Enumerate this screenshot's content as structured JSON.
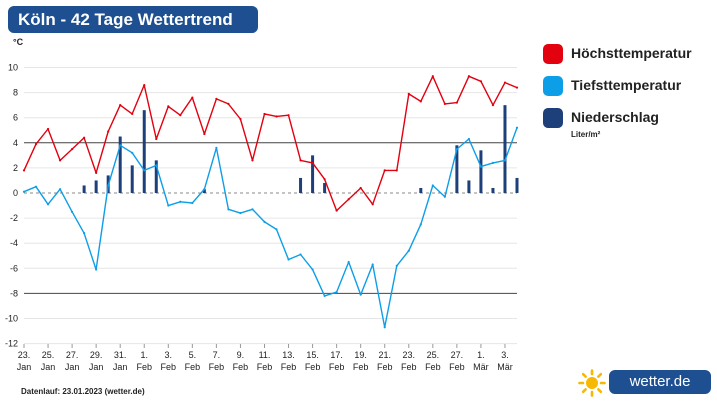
{
  "header": {
    "title": "Köln - 42 Tage Wettertrend",
    "unit": "°C"
  },
  "legend": {
    "items": [
      {
        "label": "Höchsttemperatur",
        "color": "#e3000f"
      },
      {
        "label": "Tiefsttemperatur",
        "color": "#0d9ee8"
      },
      {
        "label": "Niederschlag",
        "color": "#1d3f7a",
        "sublabel": "Liter/m²"
      }
    ]
  },
  "footer": {
    "text": "Datenlauf: 23.01.2023 (wetter.de)"
  },
  "brand": {
    "text": "wetter.de",
    "sun_color": "#f6b800",
    "box_color": "#1d4f91"
  },
  "chart_data": {
    "type": "line",
    "x": [
      "2023-01-23",
      "2023-01-24",
      "2023-01-25",
      "2023-01-26",
      "2023-01-27",
      "2023-01-28",
      "2023-01-29",
      "2023-01-30",
      "2023-01-31",
      "2023-02-01",
      "2023-02-02",
      "2023-02-03",
      "2023-02-04",
      "2023-02-05",
      "2023-02-06",
      "2023-02-07",
      "2023-02-08",
      "2023-02-09",
      "2023-02-10",
      "2023-02-11",
      "2023-02-12",
      "2023-02-13",
      "2023-02-14",
      "2023-02-15",
      "2023-02-16",
      "2023-02-17",
      "2023-02-18",
      "2023-02-19",
      "2023-02-20",
      "2023-02-21",
      "2023-02-22",
      "2023-02-23",
      "2023-02-24",
      "2023-02-25",
      "2023-02-26",
      "2023-02-27",
      "2023-02-28",
      "2023-03-01",
      "2023-03-02",
      "2023-03-03",
      "2023-03-04",
      "2023-03-05"
    ],
    "x_ticks": [
      {
        "day": "23.",
        "month": "Jan"
      },
      {
        "day": "25.",
        "month": "Jan"
      },
      {
        "day": "27.",
        "month": "Jan"
      },
      {
        "day": "29.",
        "month": "Jan"
      },
      {
        "day": "31.",
        "month": "Jan"
      },
      {
        "day": "1.",
        "month": "Feb"
      },
      {
        "day": "3.",
        "month": "Feb"
      },
      {
        "day": "5.",
        "month": "Feb"
      },
      {
        "day": "7.",
        "month": "Feb"
      },
      {
        "day": "9.",
        "month": "Feb"
      },
      {
        "day": "11.",
        "month": "Feb"
      },
      {
        "day": "13.",
        "month": "Feb"
      },
      {
        "day": "15.",
        "month": "Feb"
      },
      {
        "day": "17.",
        "month": "Feb"
      },
      {
        "day": "19.",
        "month": "Feb"
      },
      {
        "day": "21.",
        "month": "Feb"
      },
      {
        "day": "23.",
        "month": "Feb"
      },
      {
        "day": "25.",
        "month": "Feb"
      },
      {
        "day": "27.",
        "month": "Feb"
      },
      {
        "day": "1.",
        "month": "Mär"
      },
      {
        "day": "3.",
        "month": "Mär"
      }
    ],
    "y_ticks": [
      10,
      8,
      6,
      4,
      2,
      0,
      -2,
      -4,
      -6,
      -8,
      -10,
      -12
    ],
    "ylim": [
      -12,
      11
    ],
    "series": [
      {
        "name": "Höchsttemperatur",
        "color": "#e3000f",
        "values": [
          1.8,
          3.9,
          5.1,
          2.6,
          3.5,
          4.4,
          1.6,
          4.9,
          7.0,
          6.3,
          8.6,
          4.3,
          6.9,
          6.2,
          7.6,
          4.7,
          7.5,
          7.1,
          5.9,
          2.6,
          6.3,
          6.1,
          6.2,
          2.6,
          2.4,
          1.1,
          -1.4,
          -0.5,
          0.4,
          -0.9,
          1.8,
          1.8,
          7.9,
          7.3,
          9.3,
          7.1,
          7.2,
          9.3,
          8.9,
          7.0,
          8.8,
          8.4
        ]
      },
      {
        "name": "Tiefsttemperatur",
        "color": "#0d9ee8",
        "values": [
          0.1,
          0.5,
          -0.9,
          0.3,
          -1.5,
          -3.2,
          -6.1,
          0.6,
          3.8,
          3.2,
          1.8,
          2.2,
          -1.0,
          -0.7,
          -0.8,
          0.3,
          3.6,
          -1.3,
          -1.6,
          -1.3,
          -2.3,
          -2.9,
          -5.3,
          -4.9,
          -6.1,
          -8.2,
          -7.9,
          -5.5,
          -8.1,
          -5.7,
          -10.7,
          -5.8,
          -4.6,
          -2.5,
          0.6,
          -0.3,
          3.5,
          4.3,
          2.1,
          2.4,
          2.6,
          5.2
        ]
      },
      {
        "name": "Niederschlag",
        "color": "#1d3f7a",
        "values": [
          0,
          0,
          0,
          0,
          0,
          0.6,
          1.0,
          1.4,
          4.5,
          2.2,
          6.6,
          2.6,
          0,
          0,
          0,
          0.3,
          0,
          0,
          0,
          0,
          0,
          0,
          0,
          1.2,
          3.0,
          0.8,
          0,
          0,
          0,
          0,
          0,
          0,
          0,
          0.4,
          0,
          0,
          3.8,
          1.0,
          3.4,
          0.4,
          7.0,
          1.2
        ]
      }
    ]
  }
}
